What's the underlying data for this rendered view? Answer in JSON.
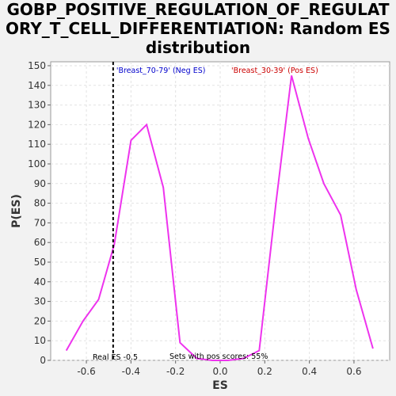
{
  "title_lines": [
    "GOBP_POSITIVE_REGULATION_OF_REGULAT",
    "ORY_T_CELL_DIFFERENTIATION: Random ES",
    "distribution"
  ],
  "chart_data": {
    "type": "line",
    "xlabel": "ES",
    "ylabel": "P(ES)",
    "xlim": [
      -0.76,
      0.76
    ],
    "ylim": [
      0,
      152
    ],
    "xticks": [
      -0.6,
      -0.4,
      -0.2,
      0.0,
      0.2,
      0.4,
      0.6
    ],
    "xtick_labels": [
      "-0.6",
      "-0.4",
      "-0.2",
      "0.0",
      "0.2",
      "0.4",
      "0.6"
    ],
    "yticks": [
      0,
      10,
      20,
      30,
      40,
      50,
      60,
      70,
      80,
      90,
      100,
      110,
      120,
      130,
      140,
      150
    ],
    "ytick_labels": [
      "0",
      "10",
      "20",
      "30",
      "40",
      "50",
      "60",
      "70",
      "80",
      "90",
      "100",
      "110",
      "120",
      "130",
      "140",
      "150"
    ],
    "grid": true,
    "series": [
      {
        "color": "#ee33ee",
        "x": [
          -0.69,
          -0.615,
          -0.545,
          -0.475,
          -0.4,
          -0.33,
          -0.255,
          -0.18,
          -0.105,
          -0.035,
          0.035,
          0.105,
          0.175,
          0.25,
          0.32,
          0.395,
          0.465,
          0.54,
          0.61,
          0.685
        ],
        "y": [
          5,
          20,
          31,
          59,
          112,
          120,
          88,
          9,
          1,
          0,
          0,
          1,
          5,
          80,
          145,
          113,
          90,
          74,
          36,
          6
        ]
      }
    ],
    "real_es": {
      "x": -0.48,
      "label": "Real ES -0.5",
      "color": "#000000"
    },
    "annotations": {
      "neg_label": "'Breast_70-79' (Neg ES)",
      "neg_color": "#0000cc",
      "pos_label": "'Breast_30-39' (Pos ES)",
      "pos_color": "#cc0000",
      "pos_scores": "Sets with pos scores: 55%"
    }
  }
}
